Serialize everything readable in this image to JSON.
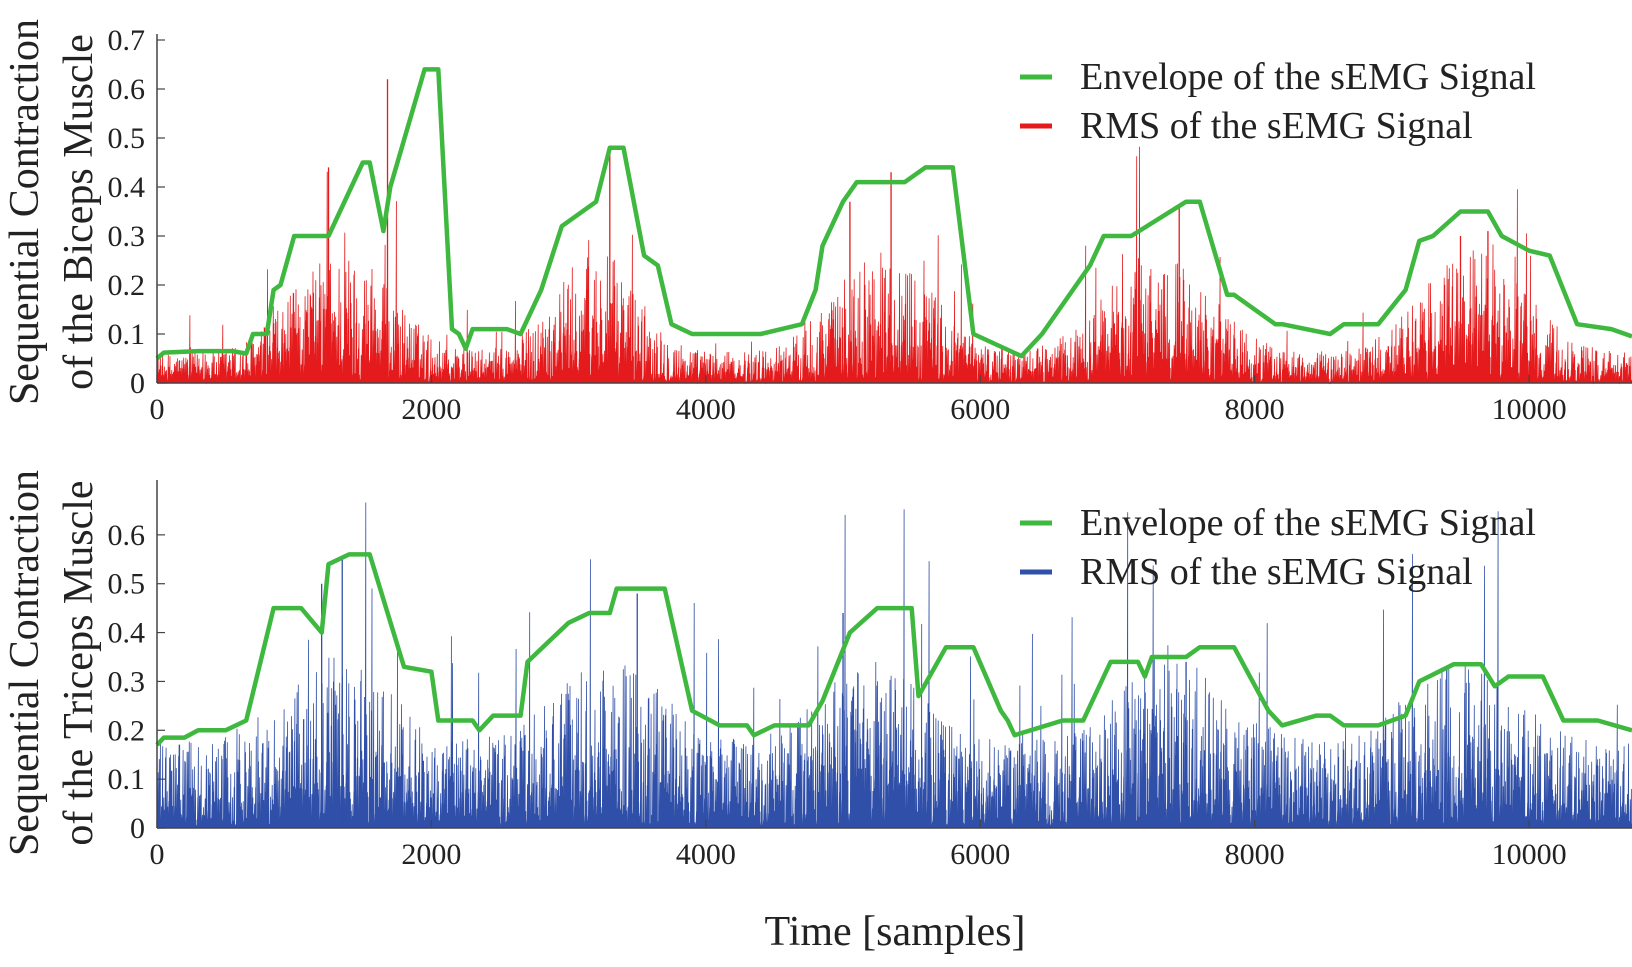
{
  "chart_data": [
    {
      "type": "line",
      "ylabel_lines": [
        "Sequential Contraction",
        "of the Biceps Muscle"
      ],
      "xlabel": "",
      "xlim": [
        0,
        10750
      ],
      "ylim": [
        0,
        0.7
      ],
      "xticks": [
        0,
        2000,
        4000,
        6000,
        8000,
        10000
      ],
      "yticks": [
        0,
        0.1,
        0.2,
        0.3,
        0.4,
        0.5,
        0.6,
        0.7
      ],
      "ytick_labels": [
        "0",
        "0.1",
        "0.2",
        "0.3",
        "0.4",
        "0.5",
        "0.6",
        "0.7"
      ],
      "grid": false,
      "legend_position": "top-right",
      "series": [
        {
          "name": "Envelope of the sEMG Signal",
          "color": "#3fb83f",
          "x": [
            0,
            50,
            300,
            550,
            650,
            700,
            800,
            850,
            900,
            1000,
            1250,
            1500,
            1550,
            1650,
            1700,
            1950,
            2050,
            2150,
            2200,
            2250,
            2300,
            2550,
            2650,
            2800,
            2950,
            3200,
            3300,
            3400,
            3550,
            3650,
            3750,
            3900,
            4100,
            4400,
            4700,
            4800,
            4850,
            5000,
            5100,
            5450,
            5600,
            5800,
            5950,
            6300,
            6450,
            6800,
            6900,
            7050,
            7100,
            7500,
            7600,
            7800,
            7850,
            8150,
            8200,
            8550,
            8650,
            8900,
            9100,
            9200,
            9300,
            9500,
            9700,
            9800,
            10000,
            10150,
            10350,
            10600,
            10750
          ],
          "y": [
            0.05,
            0.062,
            0.065,
            0.065,
            0.06,
            0.1,
            0.1,
            0.19,
            0.2,
            0.3,
            0.3,
            0.45,
            0.45,
            0.31,
            0.4,
            0.64,
            0.64,
            0.11,
            0.1,
            0.07,
            0.11,
            0.11,
            0.1,
            0.19,
            0.32,
            0.37,
            0.48,
            0.48,
            0.26,
            0.24,
            0.12,
            0.1,
            0.1,
            0.1,
            0.12,
            0.19,
            0.28,
            0.37,
            0.41,
            0.41,
            0.44,
            0.44,
            0.1,
            0.055,
            0.1,
            0.24,
            0.3,
            0.3,
            0.3,
            0.37,
            0.37,
            0.18,
            0.18,
            0.12,
            0.12,
            0.1,
            0.12,
            0.12,
            0.19,
            0.29,
            0.3,
            0.35,
            0.35,
            0.3,
            0.27,
            0.26,
            0.12,
            0.11,
            0.095
          ]
        },
        {
          "name": "RMS of the sEMG Signal",
          "color": "#e41a1c",
          "x": [
            0,
            10750
          ],
          "burst_centers": [
            1350,
            3200,
            5300,
            7300,
            9600
          ],
          "burst_widths": [
            500,
            420,
            500,
            520,
            520
          ],
          "baseline": 0.035,
          "burst_amplitude": 0.12,
          "peak_spikes": [
            [
              1680,
              0.62
            ],
            [
              1250,
              0.44
            ],
            [
              3300,
              0.47
            ],
            [
              5350,
              0.43
            ],
            [
              5050,
              0.37
            ],
            [
              7450,
              0.36
            ],
            [
              9500,
              0.3
            ],
            [
              9700,
              0.31
            ]
          ]
        }
      ]
    },
    {
      "type": "line",
      "ylabel_lines": [
        "Sequential Contraction",
        "of the Triceps Muscle"
      ],
      "xlabel": "Time [samples]",
      "xlim": [
        0,
        10750
      ],
      "ylim": [
        0,
        0.7
      ],
      "xticks": [
        0,
        2000,
        4000,
        6000,
        8000,
        10000
      ],
      "yticks": [
        0,
        0.1,
        0.2,
        0.3,
        0.4,
        0.5,
        0.6
      ],
      "ytick_labels": [
        "0",
        "0.1",
        "0.2",
        "0.3",
        "0.4",
        "0.5",
        "0.6"
      ],
      "grid": false,
      "legend_position": "top-right",
      "series": [
        {
          "name": "Envelope of the sEMG Signal",
          "color": "#3fb83f",
          "x": [
            0,
            50,
            200,
            300,
            500,
            650,
            850,
            1050,
            1200,
            1250,
            1400,
            1550,
            1800,
            2000,
            2050,
            2300,
            2350,
            2450,
            2650,
            2700,
            2850,
            3000,
            3150,
            3300,
            3350,
            3600,
            3700,
            3900,
            4100,
            4300,
            4350,
            4500,
            4750,
            4850,
            5050,
            5250,
            5500,
            5550,
            5750,
            5950,
            6150,
            6200,
            6250,
            6600,
            6750,
            6800,
            6950,
            7150,
            7200,
            7250,
            7500,
            7600,
            7850,
            8100,
            8200,
            8450,
            8550,
            8650,
            8900,
            9100,
            9200,
            9450,
            9650,
            9750,
            9850,
            10100,
            10250,
            10500,
            10750
          ],
          "y": [
            0.17,
            0.185,
            0.185,
            0.2,
            0.2,
            0.22,
            0.45,
            0.45,
            0.4,
            0.54,
            0.56,
            0.56,
            0.33,
            0.32,
            0.22,
            0.22,
            0.2,
            0.23,
            0.23,
            0.34,
            0.38,
            0.42,
            0.44,
            0.44,
            0.49,
            0.49,
            0.49,
            0.24,
            0.21,
            0.21,
            0.19,
            0.21,
            0.21,
            0.26,
            0.4,
            0.45,
            0.45,
            0.27,
            0.37,
            0.37,
            0.24,
            0.22,
            0.19,
            0.22,
            0.22,
            0.25,
            0.34,
            0.34,
            0.31,
            0.35,
            0.35,
            0.37,
            0.37,
            0.24,
            0.21,
            0.23,
            0.23,
            0.21,
            0.21,
            0.23,
            0.3,
            0.335,
            0.335,
            0.29,
            0.31,
            0.31,
            0.22,
            0.22,
            0.2
          ]
        },
        {
          "name": "RMS of the sEMG Signal",
          "color": "#2f4fa8",
          "x": [
            0,
            10750
          ],
          "burst_centers": [
            1300,
            3300,
            5200,
            7400,
            9500
          ],
          "burst_widths": [
            550,
            520,
            480,
            550,
            520
          ],
          "baseline": 0.1,
          "burst_amplitude": 0.1,
          "peak_spikes": [
            [
              1350,
              0.55
            ],
            [
              1200,
              0.5
            ],
            [
              3500,
              0.48
            ],
            [
              5000,
              0.44
            ],
            [
              7500,
              0.34
            ],
            [
              9400,
              0.33
            ]
          ]
        }
      ]
    }
  ]
}
